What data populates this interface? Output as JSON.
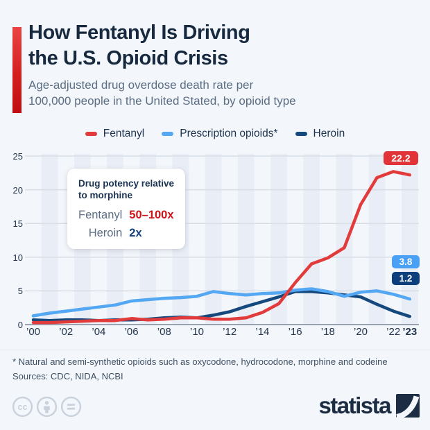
{
  "header": {
    "title_line1": "How Fentanyl Is Driving",
    "title_line2": "the U.S. Opioid Crisis",
    "subtitle_line1": "Age-adjusted drug overdose death rate per",
    "subtitle_line2": "100,000 people in the United Stated, by opioid type"
  },
  "annotation": {
    "title_line1": "Drug potency relative",
    "title_line2": "to morphine",
    "rows": [
      {
        "label": "Fentanyl",
        "value": "50–100x",
        "value_color": "#d01217"
      },
      {
        "label": "Heroin",
        "value": "2x",
        "value_color": "#14417e"
      }
    ]
  },
  "chart_data": {
    "type": "line",
    "title": "How Fentanyl Is Driving the U.S. Opioid Crisis",
    "ylabel": "Age-adjusted drug overdose death rate per 100,000 people",
    "x": [
      2000,
      2001,
      2002,
      2003,
      2004,
      2005,
      2006,
      2007,
      2008,
      2009,
      2010,
      2011,
      2012,
      2013,
      2014,
      2015,
      2016,
      2017,
      2018,
      2019,
      2020,
      2021,
      2022,
      2023
    ],
    "x_ticks": [
      {
        "year": 2000,
        "label": "’00",
        "bold": false
      },
      {
        "year": 2002,
        "label": "’02",
        "bold": false
      },
      {
        "year": 2004,
        "label": "’04",
        "bold": false
      },
      {
        "year": 2006,
        "label": "’06",
        "bold": false
      },
      {
        "year": 2008,
        "label": "’08",
        "bold": false
      },
      {
        "year": 2010,
        "label": "’10",
        "bold": false
      },
      {
        "year": 2012,
        "label": "’12",
        "bold": false
      },
      {
        "year": 2014,
        "label": "’14",
        "bold": false
      },
      {
        "year": 2016,
        "label": "’16",
        "bold": false
      },
      {
        "year": 2018,
        "label": "’18",
        "bold": false
      },
      {
        "year": 2020,
        "label": "’20",
        "bold": false
      },
      {
        "year": 2022,
        "label": "’22",
        "bold": false
      },
      {
        "year": 2023,
        "label": "’23",
        "bold": true
      }
    ],
    "y_ticks": [
      0,
      5,
      10,
      15,
      20,
      25
    ],
    "ylim": [
      0,
      25
    ],
    "grid": "horizontal",
    "legend_position": "top-center",
    "background_stripes": "alternating vertical year bands",
    "stripe_color": "#e9edf5",
    "gridline_color": "#d8dde6",
    "baseline_color": "#99a2ae",
    "series": [
      {
        "name": "Fentanyl",
        "color": "#e23b3c",
        "badge_color": "#e23339",
        "end_label": "22.2",
        "values": [
          0.3,
          0.3,
          0.4,
          0.5,
          0.6,
          0.6,
          0.9,
          0.7,
          0.8,
          1.0,
          1.0,
          0.8,
          0.8,
          1.0,
          1.8,
          3.1,
          6.2,
          9.0,
          9.9,
          11.4,
          17.8,
          21.8,
          22.7,
          22.2
        ]
      },
      {
        "name": "Prescription opioids*",
        "color": "#54a7f2",
        "badge_color": "#4aa0f4",
        "end_label": "3.8",
        "values": [
          1.3,
          1.7,
          2.0,
          2.3,
          2.6,
          2.9,
          3.5,
          3.7,
          3.9,
          4.0,
          4.2,
          4.9,
          4.6,
          4.4,
          4.6,
          4.7,
          5.1,
          5.3,
          4.9,
          4.2,
          4.8,
          5.0,
          4.5,
          3.8
        ]
      },
      {
        "name": "Heroin",
        "color": "#15497e",
        "badge_color": "#0d3f7c",
        "end_label": "1.2",
        "values": [
          0.7,
          0.6,
          0.7,
          0.7,
          0.6,
          0.7,
          0.7,
          0.8,
          1.0,
          1.1,
          1.0,
          1.4,
          1.9,
          2.7,
          3.4,
          4.1,
          4.9,
          4.9,
          4.7,
          4.4,
          4.1,
          3.0,
          2.0,
          1.2
        ]
      }
    ]
  },
  "footnote": {
    "line1": "* Natural and semi-synthetic opioids such as oxycodone, hydrocodone, morphine and codeine",
    "line2": "Sources: CDC, NIDA, NCBI"
  },
  "branding": {
    "logo_text": "statista",
    "license_icons": [
      "cc-icon",
      "attribution-icon",
      "equal-icon"
    ]
  }
}
